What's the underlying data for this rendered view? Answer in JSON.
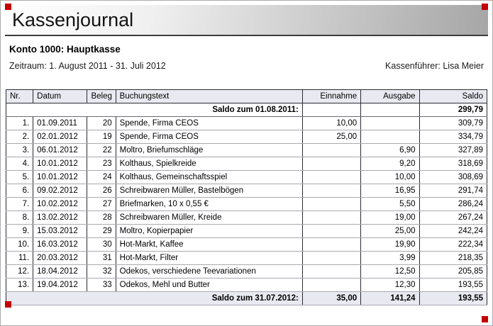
{
  "header": {
    "title": "Kassenjournal",
    "account": "Konto 1000: Hauptkasse",
    "period": "Zeitraum: 1. August 2011 - 31. Juli 2012",
    "cashier": "Kassenführer: Lisa Meier"
  },
  "table": {
    "columns": [
      "Nr.",
      "Datum",
      "Beleg",
      "Buchungstext",
      "Einnahme",
      "Ausgabe",
      "Saldo"
    ],
    "opening": {
      "label": "Saldo zum 01.08.2011:",
      "einnahme": "",
      "ausgabe": "",
      "saldo": "299,79"
    },
    "rows": [
      {
        "nr": "1.",
        "datum": "01.09.2011",
        "beleg": "20",
        "text": "Spende, Firma CEOS",
        "einnahme": "10,00",
        "ausgabe": "",
        "saldo": "309,79"
      },
      {
        "nr": "2.",
        "datum": "02.01.2012",
        "beleg": "19",
        "text": "Spende, Firma CEOS",
        "einnahme": "25,00",
        "ausgabe": "",
        "saldo": "334,79"
      },
      {
        "nr": "3.",
        "datum": "06.01.2012",
        "beleg": "22",
        "text": "Moltro, Briefumschläge",
        "einnahme": "",
        "ausgabe": "6,90",
        "saldo": "327,89"
      },
      {
        "nr": "4.",
        "datum": "10.01.2012",
        "beleg": "23",
        "text": "Kolthaus, Spielkreide",
        "einnahme": "",
        "ausgabe": "9,20",
        "saldo": "318,69"
      },
      {
        "nr": "5.",
        "datum": "10.01.2012",
        "beleg": "24",
        "text": "Kolthaus, Gemeinschaftsspiel",
        "einnahme": "",
        "ausgabe": "10,00",
        "saldo": "308,69"
      },
      {
        "nr": "6.",
        "datum": "09.02.2012",
        "beleg": "26",
        "text": "Schreibwaren Müller, Bastelbögen",
        "einnahme": "",
        "ausgabe": "16,95",
        "saldo": "291,74"
      },
      {
        "nr": "7.",
        "datum": "10.02.2012",
        "beleg": "27",
        "text": "Briefmarken, 10 x 0,55 €",
        "einnahme": "",
        "ausgabe": "5,50",
        "saldo": "286,24"
      },
      {
        "nr": "8.",
        "datum": "13.02.2012",
        "beleg": "28",
        "text": "Schreibwaren Müller, Kreide",
        "einnahme": "",
        "ausgabe": "19,00",
        "saldo": "267,24"
      },
      {
        "nr": "9.",
        "datum": "15.03.2012",
        "beleg": "29",
        "text": "Moltro, Kopierpapier",
        "einnahme": "",
        "ausgabe": "25,00",
        "saldo": "242,24"
      },
      {
        "nr": "10.",
        "datum": "16.03.2012",
        "beleg": "30",
        "text": "Hot-Markt, Kaffee",
        "einnahme": "",
        "ausgabe": "19,90",
        "saldo": "222,34"
      },
      {
        "nr": "11.",
        "datum": "20.03.2012",
        "beleg": "31",
        "text": "Hot-Markt, Filter",
        "einnahme": "",
        "ausgabe": "3,99",
        "saldo": "218,35"
      },
      {
        "nr": "12.",
        "datum": "18.04.2012",
        "beleg": "32",
        "text": "Odekos, verschiedene Teevariationen",
        "einnahme": "",
        "ausgabe": "12,50",
        "saldo": "205,85"
      },
      {
        "nr": "13.",
        "datum": "19.04.2012",
        "beleg": "33",
        "text": "Odekos, Mehl und Butter",
        "einnahme": "",
        "ausgabe": "12,30",
        "saldo": "193,55"
      }
    ],
    "closing": {
      "label": "Saldo zum 31.07.2012:",
      "einnahme": "35,00",
      "ausgabe": "141,24",
      "saldo": "193,55"
    }
  },
  "colors": {
    "accent_mark": "#c40000",
    "header_fill": "#e9e9f1",
    "total_fill": "#e9e9f1"
  }
}
